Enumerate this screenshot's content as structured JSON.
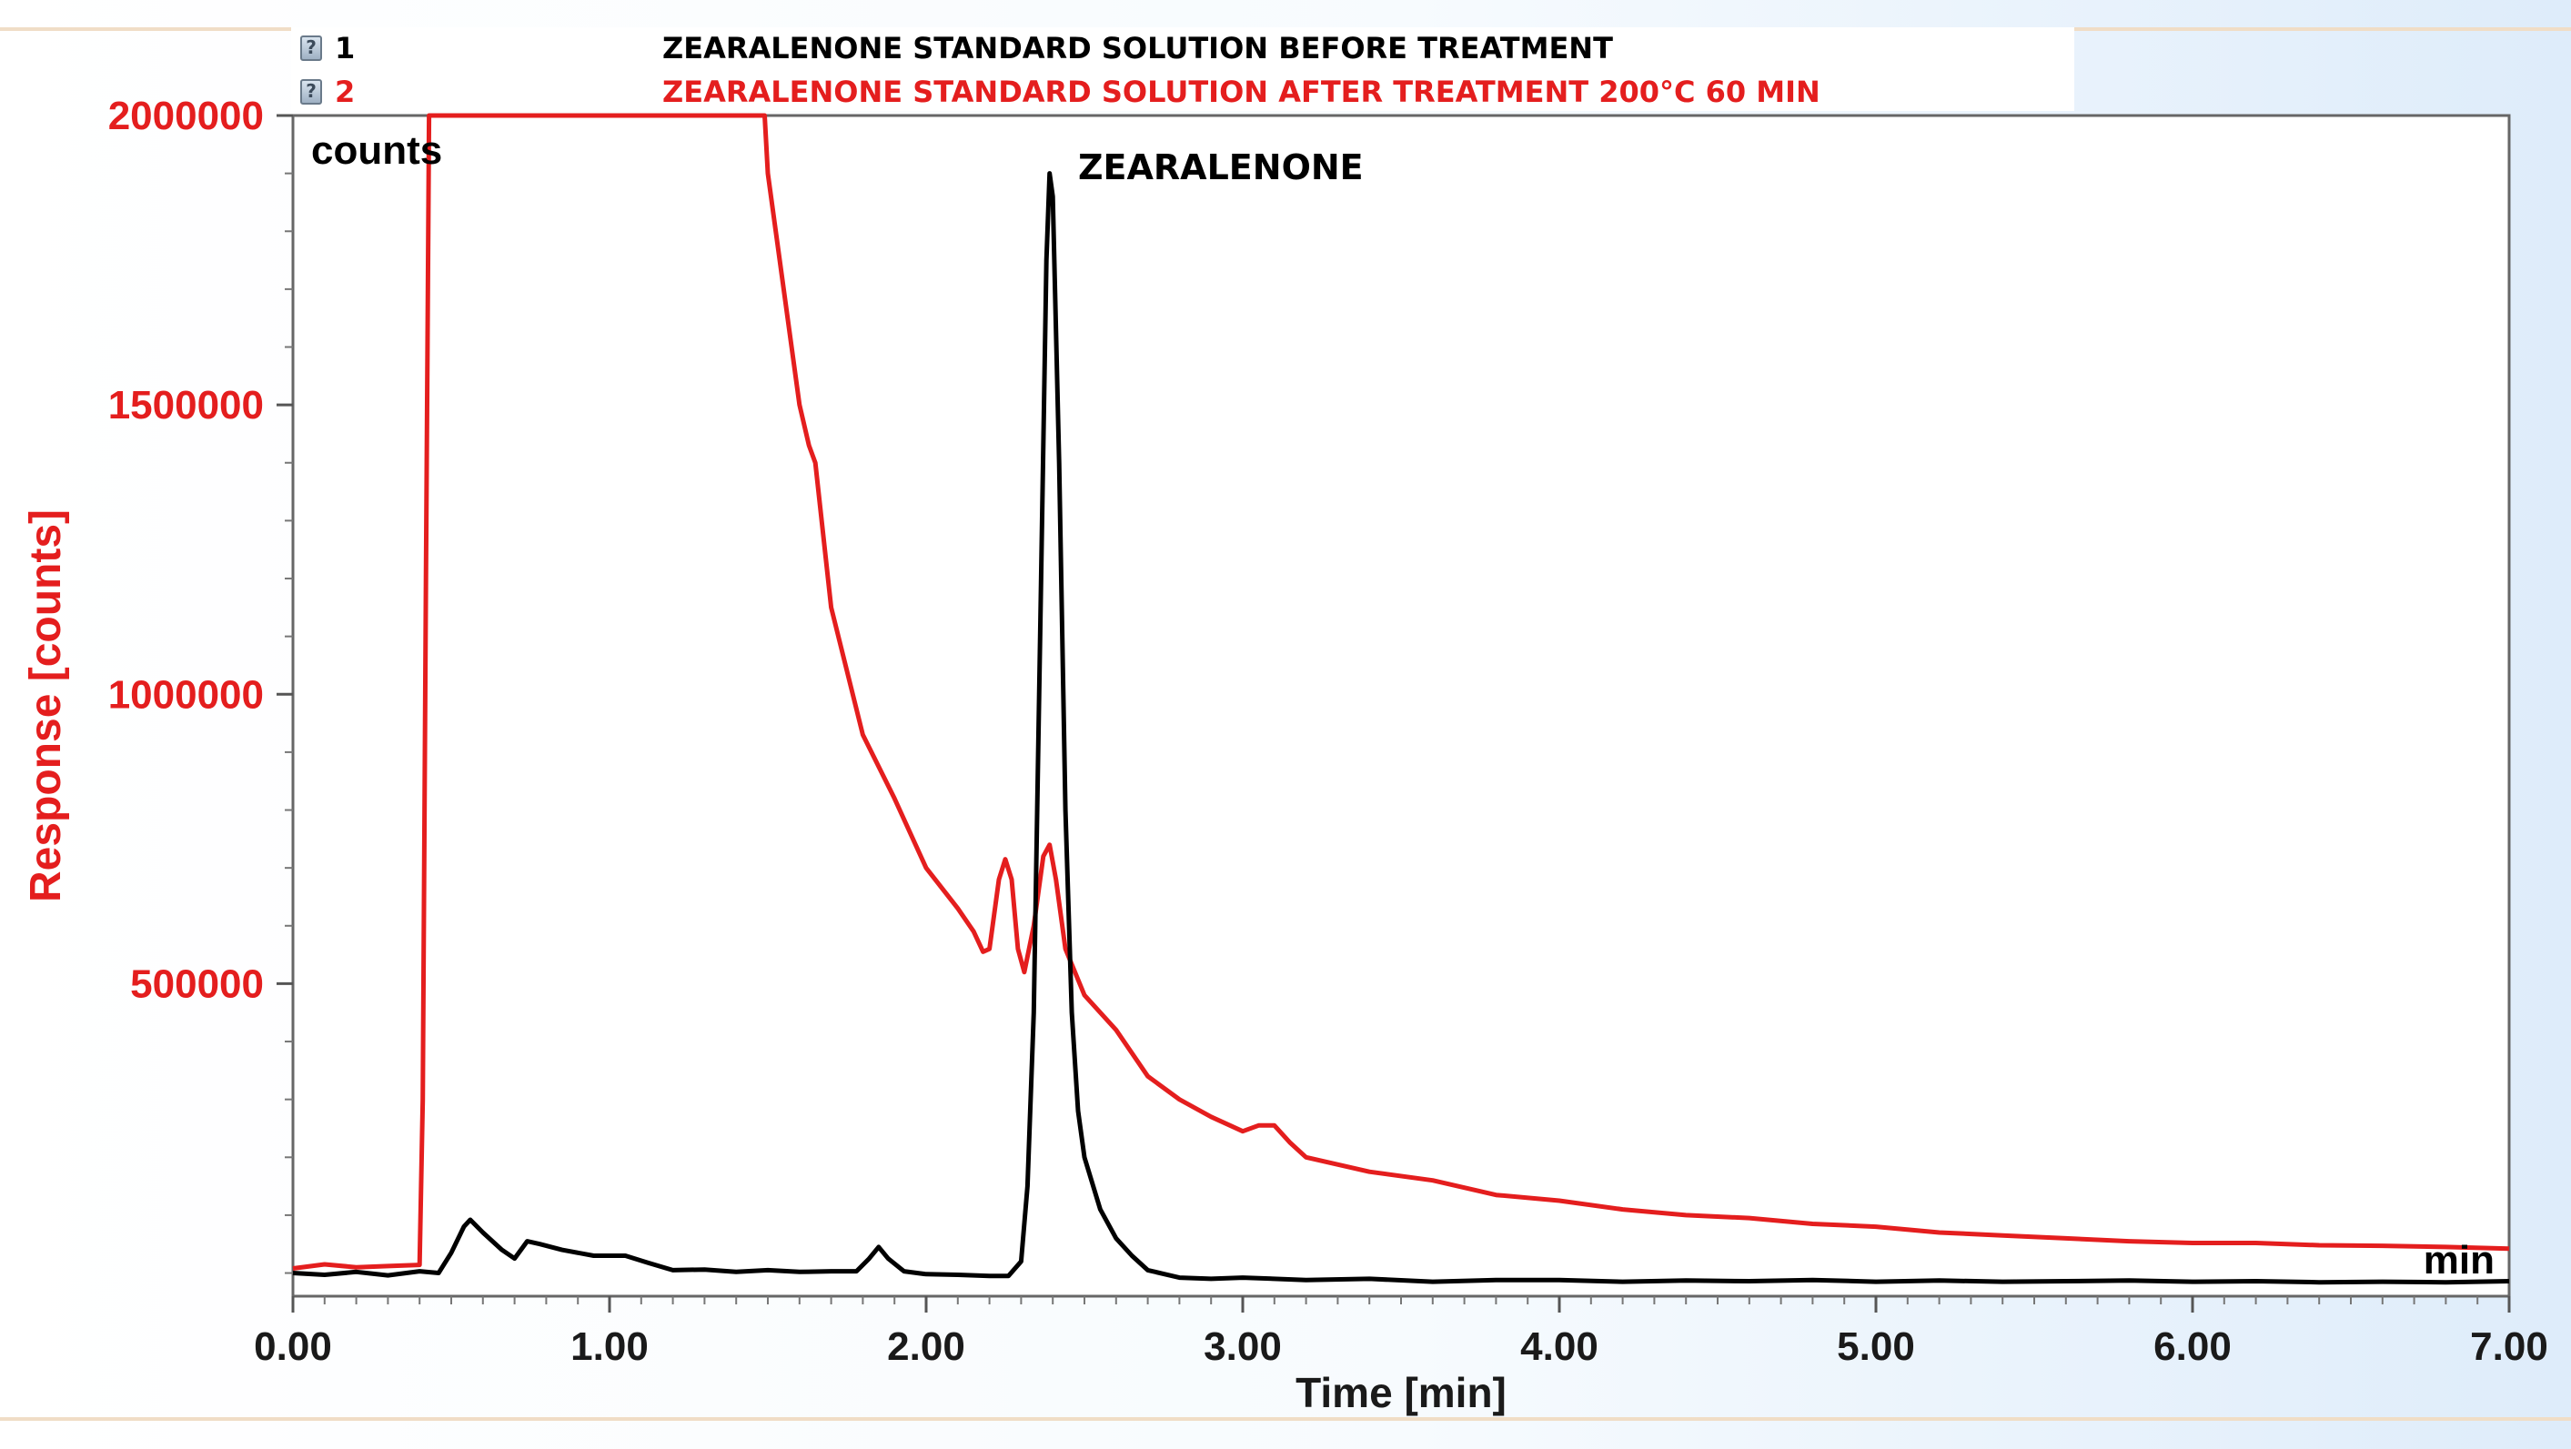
{
  "legend": {
    "items": [
      {
        "number": "1",
        "label": "ZEARALENONE STANDARD SOLUTION BEFORE TREATMENT",
        "color": "#000000"
      },
      {
        "number": "2",
        "label": "ZEARALENONE STANDARD SOLUTION AFTER TREATMENT 200°C 60 MIN",
        "color": "#e41e1e"
      }
    ]
  },
  "chart_data": {
    "type": "line",
    "title": "",
    "xlabel": "Time [min]",
    "ylabel": "Response [counts]",
    "ylabel_color": "#e41e1e",
    "counts_label": "counts",
    "x_unit_label": "min",
    "xlim": [
      0,
      7
    ],
    "ylim": [
      -40000,
      2000000
    ],
    "x_ticks": [
      0,
      1,
      2,
      3,
      4,
      5,
      6,
      7
    ],
    "x_tick_labels": [
      "0.00",
      "1.00",
      "2.00",
      "3.00",
      "4.00",
      "5.00",
      "6.00",
      "7.00"
    ],
    "y_ticks": [
      500000,
      1000000,
      1500000,
      2000000
    ],
    "y_tick_labels": [
      "500000",
      "1000000",
      "1500000",
      "2000000"
    ],
    "grid": false,
    "annotations": [
      {
        "text": "ZEARALENONE",
        "x": 2.4,
        "y": 1900000
      }
    ],
    "series": [
      {
        "name": "1",
        "color": "#000000",
        "points": [
          [
            0.0,
            0
          ],
          [
            0.1,
            -3000
          ],
          [
            0.2,
            2000
          ],
          [
            0.3,
            -4000
          ],
          [
            0.4,
            3000
          ],
          [
            0.46,
            0
          ],
          [
            0.5,
            35000
          ],
          [
            0.54,
            80000
          ],
          [
            0.56,
            92000
          ],
          [
            0.6,
            70000
          ],
          [
            0.66,
            40000
          ],
          [
            0.7,
            25000
          ],
          [
            0.74,
            55000
          ],
          [
            0.78,
            50000
          ],
          [
            0.85,
            40000
          ],
          [
            0.95,
            30000
          ],
          [
            1.05,
            30000
          ],
          [
            1.12,
            18000
          ],
          [
            1.2,
            5000
          ],
          [
            1.3,
            6000
          ],
          [
            1.4,
            2000
          ],
          [
            1.5,
            5000
          ],
          [
            1.6,
            2000
          ],
          [
            1.7,
            3000
          ],
          [
            1.78,
            3000
          ],
          [
            1.82,
            25000
          ],
          [
            1.85,
            45000
          ],
          [
            1.88,
            25000
          ],
          [
            1.93,
            3000
          ],
          [
            2.0,
            -2000
          ],
          [
            2.1,
            -3000
          ],
          [
            2.2,
            -5000
          ],
          [
            2.26,
            -5000
          ],
          [
            2.3,
            20000
          ],
          [
            2.32,
            150000
          ],
          [
            2.34,
            450000
          ],
          [
            2.36,
            1100000
          ],
          [
            2.38,
            1750000
          ],
          [
            2.39,
            1900000
          ],
          [
            2.4,
            1860000
          ],
          [
            2.42,
            1400000
          ],
          [
            2.44,
            800000
          ],
          [
            2.46,
            450000
          ],
          [
            2.48,
            280000
          ],
          [
            2.5,
            200000
          ],
          [
            2.55,
            110000
          ],
          [
            2.6,
            60000
          ],
          [
            2.65,
            30000
          ],
          [
            2.7,
            5000
          ],
          [
            2.8,
            -8000
          ],
          [
            2.9,
            -10000
          ],
          [
            3.0,
            -8000
          ],
          [
            3.2,
            -12000
          ],
          [
            3.4,
            -10000
          ],
          [
            3.6,
            -15000
          ],
          [
            3.8,
            -12000
          ],
          [
            4.0,
            -12000
          ],
          [
            4.2,
            -15000
          ],
          [
            4.4,
            -13000
          ],
          [
            4.6,
            -14000
          ],
          [
            4.8,
            -12000
          ],
          [
            5.0,
            -15000
          ],
          [
            5.2,
            -13000
          ],
          [
            5.4,
            -15000
          ],
          [
            5.6,
            -14000
          ],
          [
            5.8,
            -13000
          ],
          [
            6.0,
            -15000
          ],
          [
            6.2,
            -14000
          ],
          [
            6.4,
            -16000
          ],
          [
            6.6,
            -15000
          ],
          [
            6.8,
            -16000
          ],
          [
            7.0,
            -14000
          ]
        ]
      },
      {
        "name": "2",
        "color": "#e41e1e",
        "points": [
          [
            0.0,
            8000
          ],
          [
            0.1,
            15000
          ],
          [
            0.2,
            10000
          ],
          [
            0.3,
            12000
          ],
          [
            0.4,
            14000
          ],
          [
            0.41,
            300000
          ],
          [
            0.42,
            1200000
          ],
          [
            0.43,
            2000000
          ],
          [
            1.49,
            2000000
          ],
          [
            1.5,
            1900000
          ],
          [
            1.55,
            1700000
          ],
          [
            1.6,
            1500000
          ],
          [
            1.63,
            1430000
          ],
          [
            1.65,
            1400000
          ],
          [
            1.7,
            1150000
          ],
          [
            1.8,
            930000
          ],
          [
            1.9,
            820000
          ],
          [
            2.0,
            700000
          ],
          [
            2.1,
            630000
          ],
          [
            2.15,
            590000
          ],
          [
            2.18,
            555000
          ],
          [
            2.2,
            560000
          ],
          [
            2.23,
            680000
          ],
          [
            2.25,
            715000
          ],
          [
            2.27,
            680000
          ],
          [
            2.29,
            560000
          ],
          [
            2.31,
            520000
          ],
          [
            2.34,
            600000
          ],
          [
            2.37,
            720000
          ],
          [
            2.39,
            740000
          ],
          [
            2.41,
            680000
          ],
          [
            2.44,
            560000
          ],
          [
            2.5,
            480000
          ],
          [
            2.6,
            420000
          ],
          [
            2.7,
            340000
          ],
          [
            2.8,
            300000
          ],
          [
            2.9,
            270000
          ],
          [
            3.0,
            245000
          ],
          [
            3.05,
            255000
          ],
          [
            3.1,
            255000
          ],
          [
            3.15,
            225000
          ],
          [
            3.2,
            200000
          ],
          [
            3.4,
            175000
          ],
          [
            3.6,
            160000
          ],
          [
            3.8,
            135000
          ],
          [
            4.0,
            125000
          ],
          [
            4.2,
            110000
          ],
          [
            4.4,
            100000
          ],
          [
            4.6,
            95000
          ],
          [
            4.8,
            85000
          ],
          [
            5.0,
            80000
          ],
          [
            5.2,
            70000
          ],
          [
            5.4,
            65000
          ],
          [
            5.6,
            60000
          ],
          [
            5.8,
            55000
          ],
          [
            6.0,
            52000
          ],
          [
            6.2,
            52000
          ],
          [
            6.4,
            48000
          ],
          [
            6.6,
            47000
          ],
          [
            6.8,
            45000
          ],
          [
            7.0,
            42000
          ]
        ]
      }
    ]
  }
}
